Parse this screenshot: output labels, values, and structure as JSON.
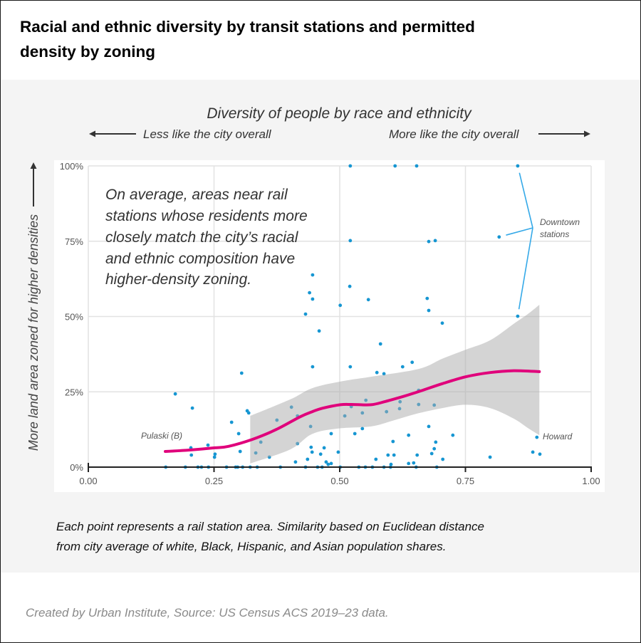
{
  "title_lines": [
    "Racial and ethnic diversity by transit stations and permitted",
    "density by zoning"
  ],
  "caption_lines": [
    "Each point represents a rail station area. Similarity based on Euclidean distance",
    "from city average of white, Black, Hispanic, and Asian population shares."
  ],
  "credit": "Created by Urban Institute, Source: US Census ACS 2019–23 data.",
  "colors": {
    "points": "#1696d2",
    "trend": "#e0007b",
    "band": "#a9a9a9",
    "annotation_lines": "#35a9e8",
    "panel": "#f4f4f4"
  },
  "chart_data": {
    "type": "scatter",
    "title": "Diversity of people by race and ethnicity",
    "direction_labels": {
      "left": "Less like the city overall",
      "right": "More like the city overall"
    },
    "xlabel": "Diversity of people by race and ethnicity",
    "ylabel": "More land area zoned for higher densities",
    "xlim": [
      0,
      1
    ],
    "ylim": [
      0,
      1
    ],
    "grid": true,
    "x_ticks": [
      0,
      0.25,
      0.5,
      0.75,
      1.0
    ],
    "x_tick_labels": [
      "0.00",
      "0.25",
      "0.50",
      "0.75",
      "1.00"
    ],
    "y_ticks": [
      0,
      0.25,
      0.5,
      0.75,
      1.0
    ],
    "y_tick_labels": [
      "0%",
      "25%",
      "50%",
      "75%",
      "100%"
    ],
    "annotation_lines": [
      "On average, areas near rail",
      "stations whose residents more",
      "closely match the city’s racial",
      "and ethnic composition have",
      "higher-density zoning."
    ],
    "labels": {
      "pulaski": "Pulaski (B)",
      "howard": "Howard",
      "downtown": [
        "Downtown",
        "stations"
      ]
    },
    "downtown_points": [
      [
        0.854,
        1.0
      ],
      [
        0.817,
        0.764
      ],
      [
        0.854,
        0.501
      ]
    ],
    "howard_point": [
      0.892,
      0.099
    ],
    "points": [
      [
        0.521,
        1.0
      ],
      [
        0.61,
        1.0
      ],
      [
        0.653,
        1.0
      ],
      [
        0.854,
        1.0
      ],
      [
        0.521,
        0.752
      ],
      [
        0.677,
        0.749
      ],
      [
        0.69,
        0.752
      ],
      [
        0.817,
        0.764
      ],
      [
        0.446,
        0.638
      ],
      [
        0.52,
        0.6
      ],
      [
        0.44,
        0.579
      ],
      [
        0.446,
        0.558
      ],
      [
        0.557,
        0.556
      ],
      [
        0.674,
        0.56
      ],
      [
        0.501,
        0.537
      ],
      [
        0.677,
        0.52
      ],
      [
        0.432,
        0.508
      ],
      [
        0.854,
        0.501
      ],
      [
        0.704,
        0.478
      ],
      [
        0.459,
        0.452
      ],
      [
        0.581,
        0.409
      ],
      [
        0.446,
        0.333
      ],
      [
        0.521,
        0.333
      ],
      [
        0.305,
        0.312
      ],
      [
        0.574,
        0.314
      ],
      [
        0.588,
        0.31
      ],
      [
        0.625,
        0.333
      ],
      [
        0.644,
        0.348
      ],
      [
        0.173,
        0.243
      ],
      [
        0.657,
        0.255
      ],
      [
        0.207,
        0.196
      ],
      [
        0.316,
        0.187
      ],
      [
        0.319,
        0.18
      ],
      [
        0.404,
        0.199
      ],
      [
        0.416,
        0.17
      ],
      [
        0.552,
        0.222
      ],
      [
        0.523,
        0.201
      ],
      [
        0.545,
        0.18
      ],
      [
        0.62,
        0.217
      ],
      [
        0.619,
        0.194
      ],
      [
        0.593,
        0.184
      ],
      [
        0.657,
        0.208
      ],
      [
        0.688,
        0.206
      ],
      [
        0.51,
        0.17
      ],
      [
        0.375,
        0.156
      ],
      [
        0.285,
        0.149
      ],
      [
        0.442,
        0.135
      ],
      [
        0.545,
        0.128
      ],
      [
        0.677,
        0.135
      ],
      [
        0.299,
        0.111
      ],
      [
        0.483,
        0.111
      ],
      [
        0.53,
        0.111
      ],
      [
        0.637,
        0.106
      ],
      [
        0.725,
        0.106
      ],
      [
        0.892,
        0.099
      ],
      [
        0.343,
        0.083
      ],
      [
        0.416,
        0.078
      ],
      [
        0.606,
        0.085
      ],
      [
        0.691,
        0.083
      ],
      [
        0.238,
        0.073
      ],
      [
        0.204,
        0.064
      ],
      [
        0.443,
        0.066
      ],
      [
        0.469,
        0.064
      ],
      [
        0.688,
        0.061
      ],
      [
        0.302,
        0.052
      ],
      [
        0.445,
        0.05
      ],
      [
        0.497,
        0.05
      ],
      [
        0.333,
        0.047
      ],
      [
        0.884,
        0.05
      ],
      [
        0.898,
        0.043
      ],
      [
        0.462,
        0.043
      ],
      [
        0.205,
        0.04
      ],
      [
        0.596,
        0.04
      ],
      [
        0.608,
        0.04
      ],
      [
        0.654,
        0.04
      ],
      [
        0.683,
        0.045
      ],
      [
        0.251,
        0.033
      ],
      [
        0.252,
        0.043
      ],
      [
        0.36,
        0.033
      ],
      [
        0.799,
        0.033
      ],
      [
        0.436,
        0.026
      ],
      [
        0.572,
        0.026
      ],
      [
        0.705,
        0.026
      ],
      [
        0.412,
        0.017
      ],
      [
        0.473,
        0.017
      ],
      [
        0.477,
        0.009
      ],
      [
        0.483,
        0.012
      ],
      [
        0.602,
        0.009
      ],
      [
        0.637,
        0.012
      ],
      [
        0.647,
        0.014
      ],
      [
        0.154,
        0
      ],
      [
        0.193,
        0
      ],
      [
        0.218,
        0
      ],
      [
        0.225,
        0
      ],
      [
        0.239,
        0
      ],
      [
        0.275,
        0
      ],
      [
        0.293,
        0
      ],
      [
        0.297,
        0
      ],
      [
        0.307,
        0
      ],
      [
        0.322,
        0
      ],
      [
        0.336,
        0
      ],
      [
        0.382,
        0
      ],
      [
        0.432,
        0
      ],
      [
        0.456,
        0
      ],
      [
        0.465,
        0
      ],
      [
        0.501,
        0
      ],
      [
        0.538,
        0
      ],
      [
        0.551,
        0
      ],
      [
        0.565,
        0
      ],
      [
        0.588,
        0
      ],
      [
        0.601,
        0
      ],
      [
        0.652,
        0
      ],
      [
        0.693,
        0
      ]
    ],
    "trend": {
      "name": "Smoothed trend",
      "points": [
        [
          0.153,
          0.052
        ],
        [
          0.204,
          0.057
        ],
        [
          0.251,
          0.064
        ],
        [
          0.279,
          0.069
        ],
        [
          0.326,
          0.092
        ],
        [
          0.374,
          0.125
        ],
        [
          0.421,
          0.167
        ],
        [
          0.445,
          0.184
        ],
        [
          0.467,
          0.196
        ],
        [
          0.501,
          0.207
        ],
        [
          0.524,
          0.208
        ],
        [
          0.562,
          0.207
        ],
        [
          0.591,
          0.218
        ],
        [
          0.629,
          0.236
        ],
        [
          0.661,
          0.253
        ],
        [
          0.704,
          0.277
        ],
        [
          0.751,
          0.3
        ],
        [
          0.799,
          0.314
        ],
        [
          0.846,
          0.32
        ],
        [
          0.897,
          0.317
        ]
      ],
      "ci_upper": [
        [
          0.322,
          0.17
        ],
        [
          0.402,
          0.225
        ],
        [
          0.445,
          0.262
        ],
        [
          0.501,
          0.284
        ],
        [
          0.562,
          0.3
        ],
        [
          0.657,
          0.326
        ],
        [
          0.704,
          0.36
        ],
        [
          0.751,
          0.39
        ],
        [
          0.799,
          0.421
        ],
        [
          0.846,
          0.476
        ],
        [
          0.874,
          0.508
        ],
        [
          0.897,
          0.539
        ]
      ],
      "ci_lower": [
        [
          0.322,
          0.012
        ],
        [
          0.402,
          0.059
        ],
        [
          0.445,
          0.11
        ],
        [
          0.496,
          0.128
        ],
        [
          0.562,
          0.135
        ],
        [
          0.605,
          0.154
        ],
        [
          0.652,
          0.177
        ],
        [
          0.704,
          0.196
        ],
        [
          0.751,
          0.207
        ],
        [
          0.799,
          0.196
        ],
        [
          0.846,
          0.161
        ],
        [
          0.874,
          0.13
        ],
        [
          0.897,
          0.106
        ]
      ]
    }
  }
}
